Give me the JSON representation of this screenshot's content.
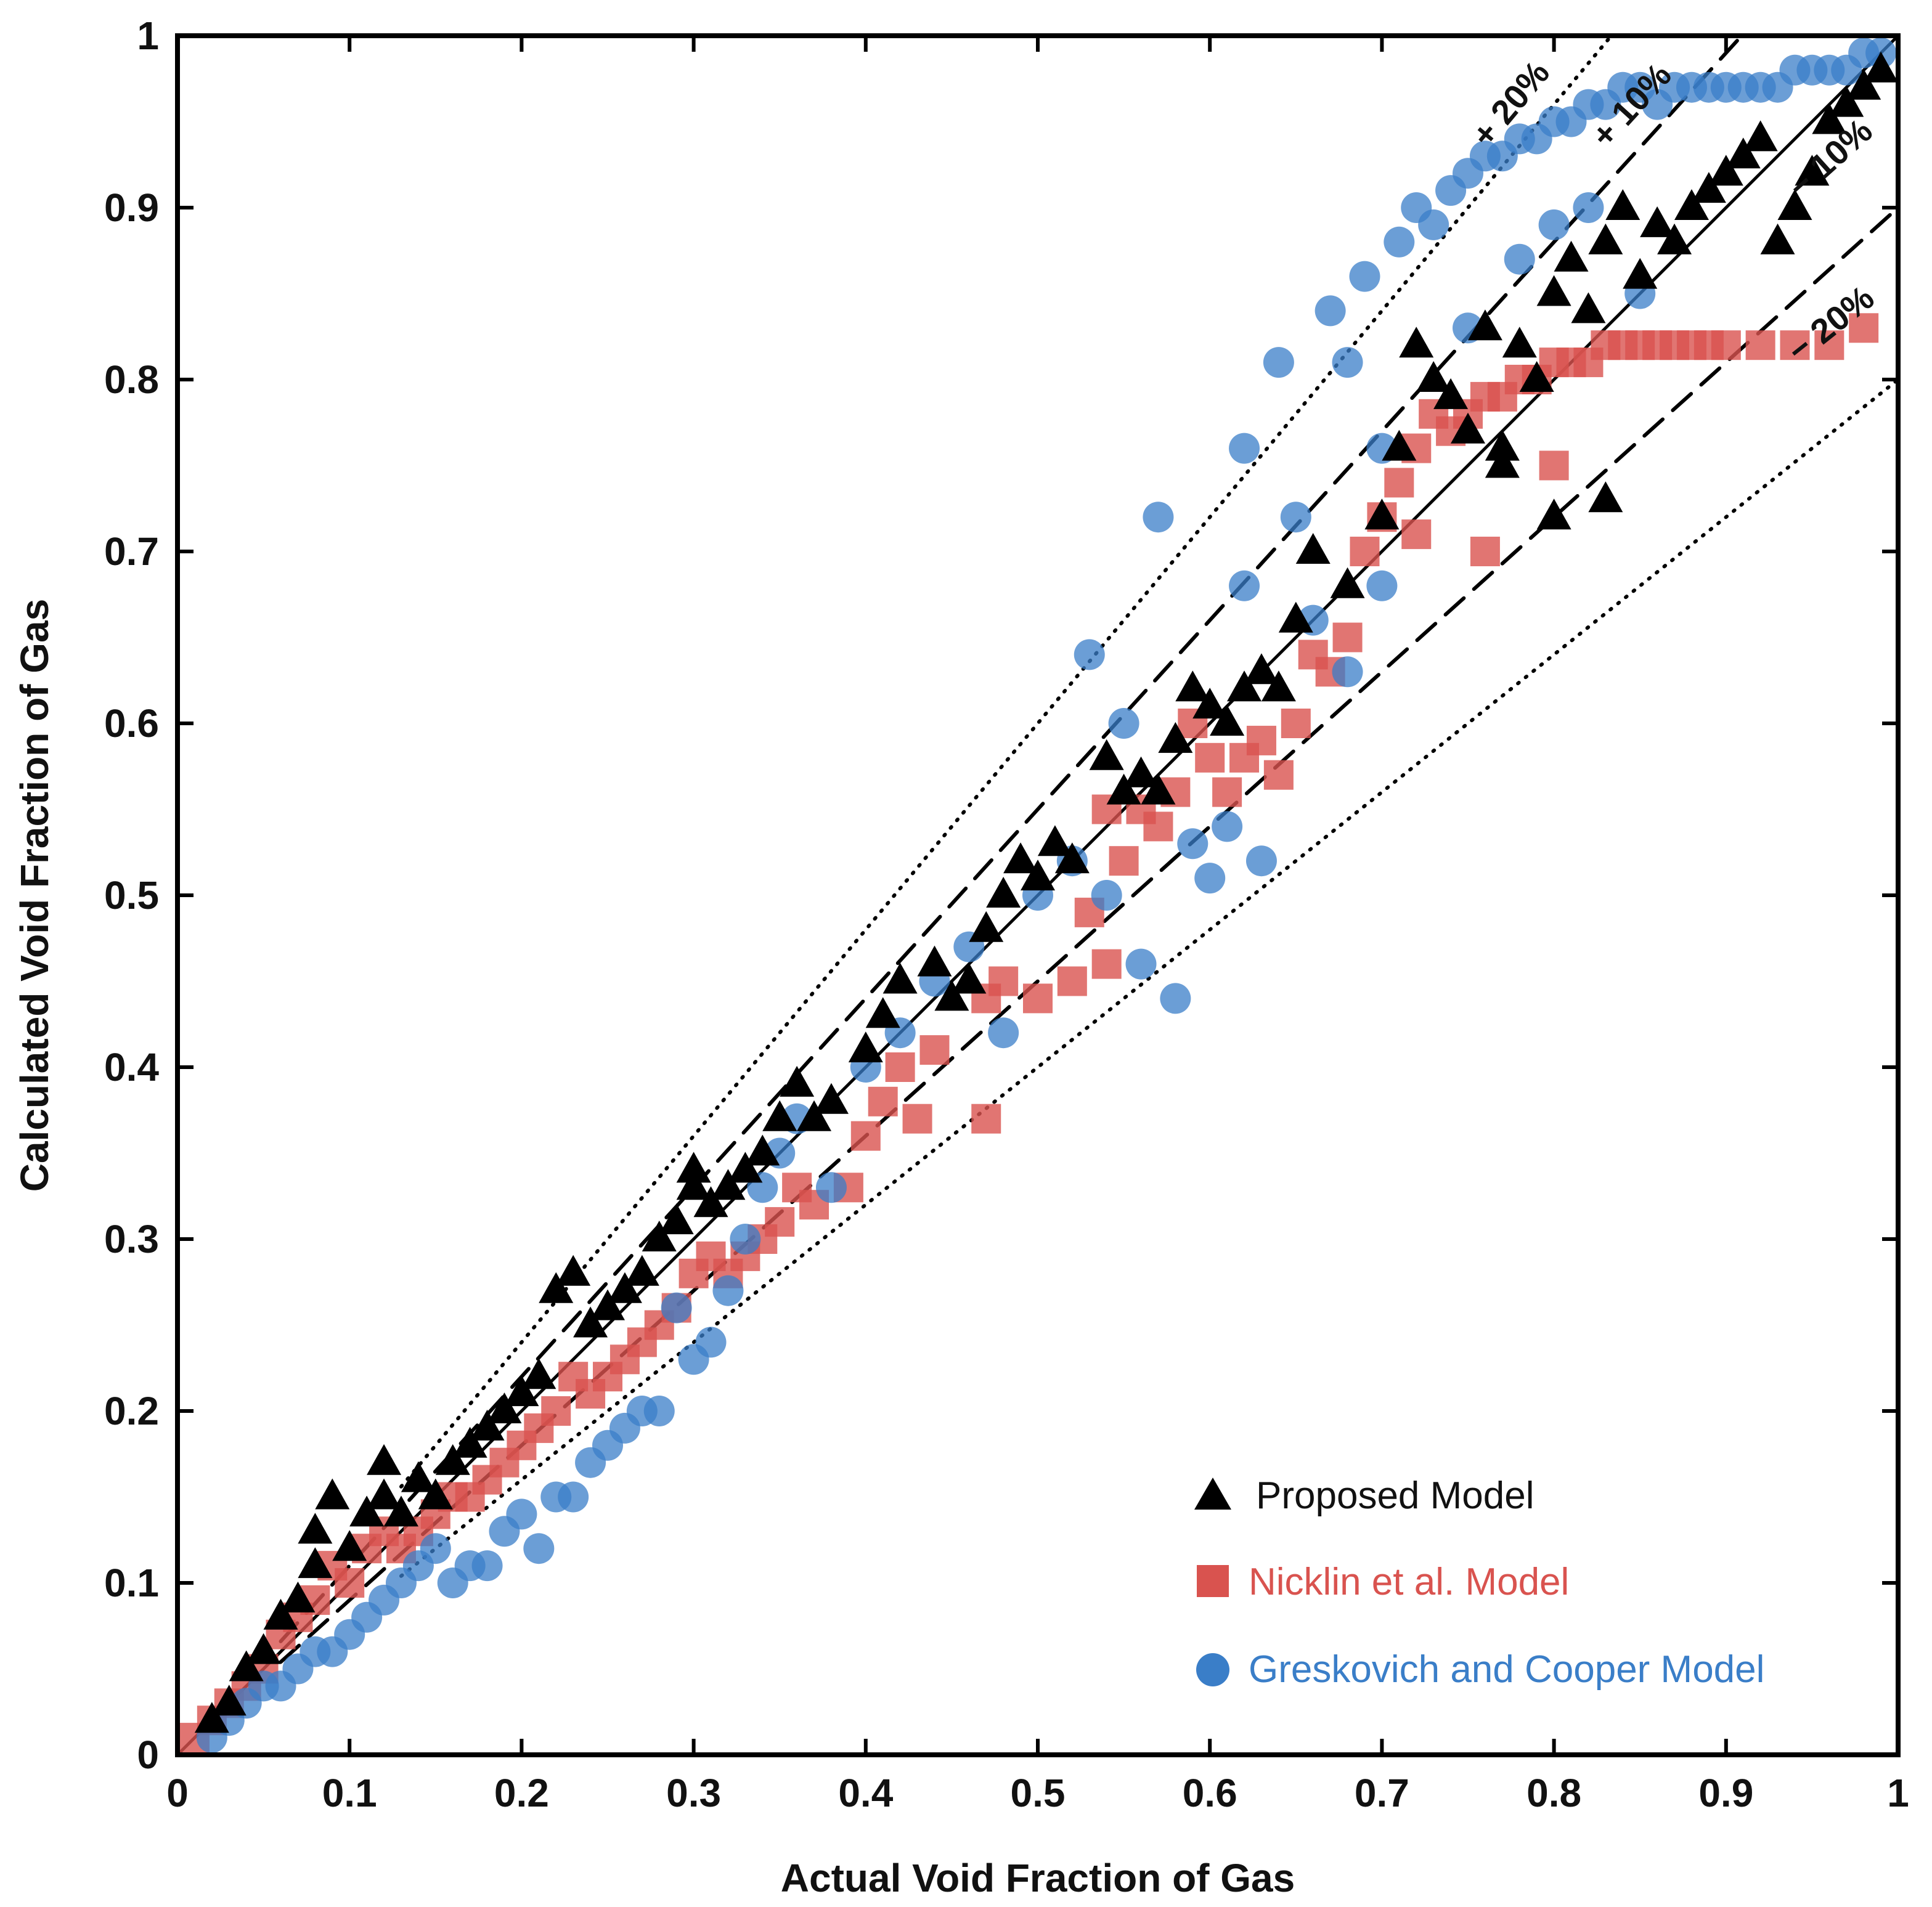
{
  "chart_data": {
    "type": "scatter",
    "title": "",
    "xlabel": "Actual Void Fraction of Gas",
    "ylabel": "Calculated Void Fraction of Gas",
    "xlim": [
      0,
      1
    ],
    "ylim": [
      0,
      1
    ],
    "xticks": [
      "0",
      "0.1",
      "0.2",
      "0.3",
      "0.4",
      "0.5",
      "0.6",
      "0.7",
      "0.8",
      "0.9",
      "1"
    ],
    "yticks": [
      "0",
      "0.1",
      "0.2",
      "0.3",
      "0.4",
      "0.5",
      "0.6",
      "0.7",
      "0.8",
      "0.9",
      "1"
    ],
    "grid": false,
    "legend_position": "bottom-right",
    "reference_lines": [
      {
        "name": "+20%",
        "label": "+ 20%",
        "slope": 1.2,
        "style": "dotted"
      },
      {
        "name": "+10%",
        "label": "+ 10%",
        "slope": 1.1,
        "style": "dashed"
      },
      {
        "name": "-10%",
        "label": "− 10%",
        "slope": 0.9,
        "style": "dashed"
      },
      {
        "name": "-20%",
        "label": "− 20%",
        "slope": 0.8,
        "style": "dotted"
      }
    ],
    "series": [
      {
        "name": "Proposed Model",
        "marker": "triangle",
        "color": "#000000",
        "points": [
          [
            0.02,
            0.02
          ],
          [
            0.03,
            0.03
          ],
          [
            0.04,
            0.05
          ],
          [
            0.05,
            0.06
          ],
          [
            0.06,
            0.08
          ],
          [
            0.07,
            0.09
          ],
          [
            0.08,
            0.11
          ],
          [
            0.08,
            0.13
          ],
          [
            0.09,
            0.15
          ],
          [
            0.1,
            0.12
          ],
          [
            0.11,
            0.14
          ],
          [
            0.12,
            0.17
          ],
          [
            0.12,
            0.15
          ],
          [
            0.13,
            0.14
          ],
          [
            0.14,
            0.16
          ],
          [
            0.15,
            0.15
          ],
          [
            0.16,
            0.17
          ],
          [
            0.17,
            0.18
          ],
          [
            0.18,
            0.19
          ],
          [
            0.19,
            0.2
          ],
          [
            0.2,
            0.21
          ],
          [
            0.21,
            0.22
          ],
          [
            0.22,
            0.27
          ],
          [
            0.23,
            0.28
          ],
          [
            0.24,
            0.25
          ],
          [
            0.25,
            0.26
          ],
          [
            0.26,
            0.27
          ],
          [
            0.27,
            0.28
          ],
          [
            0.28,
            0.3
          ],
          [
            0.29,
            0.31
          ],
          [
            0.3,
            0.33
          ],
          [
            0.3,
            0.34
          ],
          [
            0.31,
            0.32
          ],
          [
            0.32,
            0.33
          ],
          [
            0.33,
            0.34
          ],
          [
            0.34,
            0.35
          ],
          [
            0.35,
            0.37
          ],
          [
            0.36,
            0.39
          ],
          [
            0.37,
            0.37
          ],
          [
            0.38,
            0.38
          ],
          [
            0.4,
            0.41
          ],
          [
            0.41,
            0.43
          ],
          [
            0.42,
            0.45
          ],
          [
            0.44,
            0.46
          ],
          [
            0.45,
            0.44
          ],
          [
            0.46,
            0.45
          ],
          [
            0.47,
            0.48
          ],
          [
            0.48,
            0.5
          ],
          [
            0.49,
            0.52
          ],
          [
            0.5,
            0.51
          ],
          [
            0.51,
            0.53
          ],
          [
            0.52,
            0.52
          ],
          [
            0.54,
            0.58
          ],
          [
            0.55,
            0.56
          ],
          [
            0.56,
            0.57
          ],
          [
            0.57,
            0.56
          ],
          [
            0.58,
            0.59
          ],
          [
            0.59,
            0.62
          ],
          [
            0.6,
            0.61
          ],
          [
            0.61,
            0.6
          ],
          [
            0.62,
            0.62
          ],
          [
            0.63,
            0.63
          ],
          [
            0.64,
            0.62
          ],
          [
            0.65,
            0.66
          ],
          [
            0.66,
            0.7
          ],
          [
            0.68,
            0.68
          ],
          [
            0.7,
            0.72
          ],
          [
            0.71,
            0.76
          ],
          [
            0.72,
            0.82
          ],
          [
            0.73,
            0.8
          ],
          [
            0.74,
            0.79
          ],
          [
            0.75,
            0.77
          ],
          [
            0.76,
            0.83
          ],
          [
            0.77,
            0.75
          ],
          [
            0.78,
            0.82
          ],
          [
            0.79,
            0.8
          ],
          [
            0.8,
            0.85
          ],
          [
            0.81,
            0.87
          ],
          [
            0.82,
            0.84
          ],
          [
            0.83,
            0.88
          ],
          [
            0.84,
            0.9
          ],
          [
            0.85,
            0.86
          ],
          [
            0.86,
            0.89
          ],
          [
            0.87,
            0.88
          ],
          [
            0.88,
            0.9
          ],
          [
            0.89,
            0.91
          ],
          [
            0.9,
            0.92
          ],
          [
            0.91,
            0.93
          ],
          [
            0.92,
            0.94
          ],
          [
            0.93,
            0.88
          ],
          [
            0.94,
            0.9
          ],
          [
            0.95,
            0.92
          ],
          [
            0.96,
            0.95
          ],
          [
            0.97,
            0.96
          ],
          [
            0.98,
            0.97
          ],
          [
            0.99,
            0.98
          ],
          [
            0.8,
            0.72
          ],
          [
            0.83,
            0.73
          ],
          [
            0.77,
            0.76
          ]
        ]
      },
      {
        "name": "Nicklin et al. Model",
        "marker": "square",
        "color": "#d9534f",
        "points": [
          [
            0.01,
            0.01
          ],
          [
            0.02,
            0.02
          ],
          [
            0.03,
            0.03
          ],
          [
            0.04,
            0.04
          ],
          [
            0.05,
            0.05
          ],
          [
            0.06,
            0.07
          ],
          [
            0.07,
            0.08
          ],
          [
            0.08,
            0.09
          ],
          [
            0.09,
            0.11
          ],
          [
            0.1,
            0.1
          ],
          [
            0.11,
            0.12
          ],
          [
            0.12,
            0.13
          ],
          [
            0.13,
            0.12
          ],
          [
            0.14,
            0.13
          ],
          [
            0.15,
            0.14
          ],
          [
            0.16,
            0.15
          ],
          [
            0.17,
            0.15
          ],
          [
            0.18,
            0.16
          ],
          [
            0.19,
            0.17
          ],
          [
            0.2,
            0.18
          ],
          [
            0.21,
            0.19
          ],
          [
            0.22,
            0.2
          ],
          [
            0.23,
            0.22
          ],
          [
            0.24,
            0.21
          ],
          [
            0.25,
            0.22
          ],
          [
            0.26,
            0.23
          ],
          [
            0.27,
            0.24
          ],
          [
            0.28,
            0.25
          ],
          [
            0.29,
            0.26
          ],
          [
            0.3,
            0.28
          ],
          [
            0.31,
            0.29
          ],
          [
            0.32,
            0.28
          ],
          [
            0.33,
            0.29
          ],
          [
            0.34,
            0.3
          ],
          [
            0.35,
            0.31
          ],
          [
            0.36,
            0.33
          ],
          [
            0.37,
            0.32
          ],
          [
            0.39,
            0.33
          ],
          [
            0.4,
            0.36
          ],
          [
            0.41,
            0.38
          ],
          [
            0.42,
            0.4
          ],
          [
            0.43,
            0.37
          ],
          [
            0.44,
            0.41
          ],
          [
            0.47,
            0.37
          ],
          [
            0.47,
            0.44
          ],
          [
            0.48,
            0.45
          ],
          [
            0.5,
            0.44
          ],
          [
            0.52,
            0.45
          ],
          [
            0.53,
            0.49
          ],
          [
            0.54,
            0.46
          ],
          [
            0.54,
            0.55
          ],
          [
            0.55,
            0.52
          ],
          [
            0.56,
            0.55
          ],
          [
            0.57,
            0.54
          ],
          [
            0.58,
            0.56
          ],
          [
            0.59,
            0.6
          ],
          [
            0.6,
            0.58
          ],
          [
            0.61,
            0.56
          ],
          [
            0.62,
            0.58
          ],
          [
            0.63,
            0.59
          ],
          [
            0.64,
            0.57
          ],
          [
            0.65,
            0.6
          ],
          [
            0.66,
            0.64
          ],
          [
            0.67,
            0.63
          ],
          [
            0.68,
            0.65
          ],
          [
            0.69,
            0.7
          ],
          [
            0.7,
            0.72
          ],
          [
            0.71,
            0.74
          ],
          [
            0.72,
            0.76
          ],
          [
            0.73,
            0.78
          ],
          [
            0.74,
            0.77
          ],
          [
            0.75,
            0.78
          ],
          [
            0.76,
            0.79
          ],
          [
            0.77,
            0.79
          ],
          [
            0.78,
            0.8
          ],
          [
            0.79,
            0.8
          ],
          [
            0.8,
            0.81
          ],
          [
            0.81,
            0.81
          ],
          [
            0.82,
            0.81
          ],
          [
            0.83,
            0.82
          ],
          [
            0.84,
            0.82
          ],
          [
            0.85,
            0.82
          ],
          [
            0.86,
            0.82
          ],
          [
            0.87,
            0.82
          ],
          [
            0.88,
            0.82
          ],
          [
            0.89,
            0.82
          ],
          [
            0.9,
            0.82
          ],
          [
            0.92,
            0.82
          ],
          [
            0.94,
            0.82
          ],
          [
            0.96,
            0.82
          ],
          [
            0.98,
            0.83
          ],
          [
            0.72,
            0.71
          ],
          [
            0.76,
            0.7
          ],
          [
            0.8,
            0.75
          ]
        ]
      },
      {
        "name": "Greskovich and Cooper Model",
        "marker": "circle",
        "color": "#3a7ec8",
        "points": [
          [
            0.02,
            0.01
          ],
          [
            0.03,
            0.02
          ],
          [
            0.04,
            0.03
          ],
          [
            0.05,
            0.04
          ],
          [
            0.06,
            0.04
          ],
          [
            0.07,
            0.05
          ],
          [
            0.08,
            0.06
          ],
          [
            0.09,
            0.06
          ],
          [
            0.1,
            0.07
          ],
          [
            0.11,
            0.08
          ],
          [
            0.12,
            0.09
          ],
          [
            0.13,
            0.1
          ],
          [
            0.14,
            0.11
          ],
          [
            0.15,
            0.12
          ],
          [
            0.16,
            0.1
          ],
          [
            0.17,
            0.11
          ],
          [
            0.18,
            0.11
          ],
          [
            0.19,
            0.13
          ],
          [
            0.2,
            0.14
          ],
          [
            0.21,
            0.12
          ],
          [
            0.22,
            0.15
          ],
          [
            0.23,
            0.15
          ],
          [
            0.24,
            0.17
          ],
          [
            0.25,
            0.18
          ],
          [
            0.26,
            0.19
          ],
          [
            0.27,
            0.2
          ],
          [
            0.28,
            0.2
          ],
          [
            0.29,
            0.26
          ],
          [
            0.3,
            0.23
          ],
          [
            0.31,
            0.24
          ],
          [
            0.32,
            0.27
          ],
          [
            0.33,
            0.3
          ],
          [
            0.34,
            0.33
          ],
          [
            0.35,
            0.35
          ],
          [
            0.36,
            0.37
          ],
          [
            0.38,
            0.33
          ],
          [
            0.4,
            0.4
          ],
          [
            0.42,
            0.42
          ],
          [
            0.44,
            0.45
          ],
          [
            0.46,
            0.47
          ],
          [
            0.48,
            0.42
          ],
          [
            0.5,
            0.5
          ],
          [
            0.52,
            0.52
          ],
          [
            0.53,
            0.64
          ],
          [
            0.54,
            0.5
          ],
          [
            0.55,
            0.6
          ],
          [
            0.56,
            0.46
          ],
          [
            0.57,
            0.72
          ],
          [
            0.58,
            0.44
          ],
          [
            0.59,
            0.53
          ],
          [
            0.6,
            0.51
          ],
          [
            0.61,
            0.54
          ],
          [
            0.62,
            0.76
          ],
          [
            0.63,
            0.52
          ],
          [
            0.64,
            0.81
          ],
          [
            0.65,
            0.72
          ],
          [
            0.66,
            0.66
          ],
          [
            0.67,
            0.84
          ],
          [
            0.68,
            0.81
          ],
          [
            0.69,
            0.86
          ],
          [
            0.7,
            0.76
          ],
          [
            0.71,
            0.88
          ],
          [
            0.72,
            0.9
          ],
          [
            0.73,
            0.89
          ],
          [
            0.74,
            0.91
          ],
          [
            0.75,
            0.92
          ],
          [
            0.76,
            0.93
          ],
          [
            0.77,
            0.93
          ],
          [
            0.78,
            0.94
          ],
          [
            0.79,
            0.94
          ],
          [
            0.8,
            0.95
          ],
          [
            0.81,
            0.95
          ],
          [
            0.82,
            0.96
          ],
          [
            0.83,
            0.96
          ],
          [
            0.84,
            0.97
          ],
          [
            0.85,
            0.97
          ],
          [
            0.86,
            0.96
          ],
          [
            0.87,
            0.97
          ],
          [
            0.88,
            0.97
          ],
          [
            0.89,
            0.97
          ],
          [
            0.9,
            0.97
          ],
          [
            0.91,
            0.97
          ],
          [
            0.92,
            0.97
          ],
          [
            0.93,
            0.97
          ],
          [
            0.94,
            0.98
          ],
          [
            0.95,
            0.98
          ],
          [
            0.96,
            0.98
          ],
          [
            0.97,
            0.98
          ],
          [
            0.98,
            0.99
          ],
          [
            0.99,
            0.99
          ],
          [
            0.8,
            0.89
          ],
          [
            0.82,
            0.9
          ],
          [
            0.85,
            0.85
          ],
          [
            0.78,
            0.87
          ],
          [
            0.75,
            0.83
          ],
          [
            0.7,
            0.68
          ],
          [
            0.68,
            0.63
          ],
          [
            0.62,
            0.68
          ]
        ]
      }
    ]
  }
}
